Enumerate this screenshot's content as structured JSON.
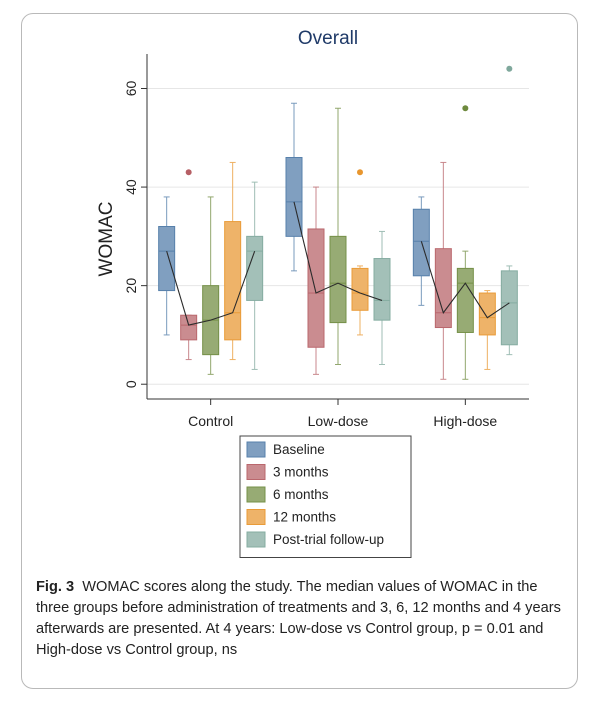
{
  "figure": {
    "label": "Fig. 3",
    "caption": "WOMAC scores along the study. The median values of WOMAC in the three groups before administration of treatments and 3, 6, 12 months and 4 years afterwards are presented. At 4 years: Low-dose vs Control group, p = 0.01 and High-dose vs Control group, ns"
  },
  "chart_data": {
    "type": "box",
    "title": "Overall",
    "ylabel": "WOMAC",
    "xlabel": "",
    "ylim": [
      -3,
      67
    ],
    "yticks": [
      0,
      20,
      40,
      60
    ],
    "grid": true,
    "legend_position": "bottom",
    "categories": [
      "Control",
      "Low-dose",
      "High-dose"
    ],
    "series": [
      {
        "name": "Baseline",
        "color": "#4e79a7",
        "boxes": [
          {
            "whisker_low": 10,
            "q1": 19,
            "median": 27,
            "q3": 32,
            "whisker_high": 38,
            "outliers": []
          },
          {
            "whisker_low": 23,
            "q1": 30,
            "median": 37,
            "q3": 46,
            "whisker_high": 57,
            "outliers": []
          },
          {
            "whisker_low": 16,
            "q1": 22,
            "median": 29,
            "q3": 35.5,
            "whisker_high": 38,
            "outliers": []
          }
        ]
      },
      {
        "name": "3 months",
        "color": "#b65f65",
        "boxes": [
          {
            "whisker_low": 5,
            "q1": 9,
            "median": 12,
            "q3": 14,
            "whisker_high": 14,
            "outliers": [
              43
            ]
          },
          {
            "whisker_low": 2,
            "q1": 7.5,
            "median": 18.5,
            "q3": 31.5,
            "whisker_high": 40,
            "outliers": []
          },
          {
            "whisker_low": 1,
            "q1": 11.5,
            "median": 14.5,
            "q3": 27.5,
            "whisker_high": 45,
            "outliers": []
          }
        ]
      },
      {
        "name": "6 months",
        "color": "#6e8a3e",
        "boxes": [
          {
            "whisker_low": 2,
            "q1": 6,
            "median": 13,
            "q3": 20,
            "whisker_high": 38,
            "outliers": []
          },
          {
            "whisker_low": 4,
            "q1": 12.5,
            "median": 20.5,
            "q3": 30,
            "whisker_high": 56,
            "outliers": []
          },
          {
            "whisker_low": 1,
            "q1": 10.5,
            "median": 20.5,
            "q3": 23.5,
            "whisker_high": 27,
            "outliers": [
              56
            ]
          }
        ]
      },
      {
        "name": "12 months",
        "color": "#e8962e",
        "boxes": [
          {
            "whisker_low": 5,
            "q1": 9,
            "median": 14.5,
            "q3": 33,
            "whisker_high": 45,
            "outliers": []
          },
          {
            "whisker_low": 10,
            "q1": 15,
            "median": 18.5,
            "q3": 23.5,
            "whisker_high": 24,
            "outliers": [
              43
            ]
          },
          {
            "whisker_low": 3,
            "q1": 10,
            "median": 13.5,
            "q3": 18.5,
            "whisker_high": 19,
            "outliers": []
          }
        ]
      },
      {
        "name": "Post-trial follow-up",
        "color": "#7fa89c",
        "boxes": [
          {
            "whisker_low": 3,
            "q1": 17,
            "median": 27,
            "q3": 30,
            "whisker_high": 41,
            "outliers": []
          },
          {
            "whisker_low": 4,
            "q1": 13,
            "median": 17,
            "q3": 25.5,
            "whisker_high": 31,
            "outliers": []
          },
          {
            "whisker_low": 6,
            "q1": 8,
            "median": 16.5,
            "q3": 23,
            "whisker_high": 24,
            "outliers": [
              64
            ]
          }
        ]
      }
    ]
  }
}
